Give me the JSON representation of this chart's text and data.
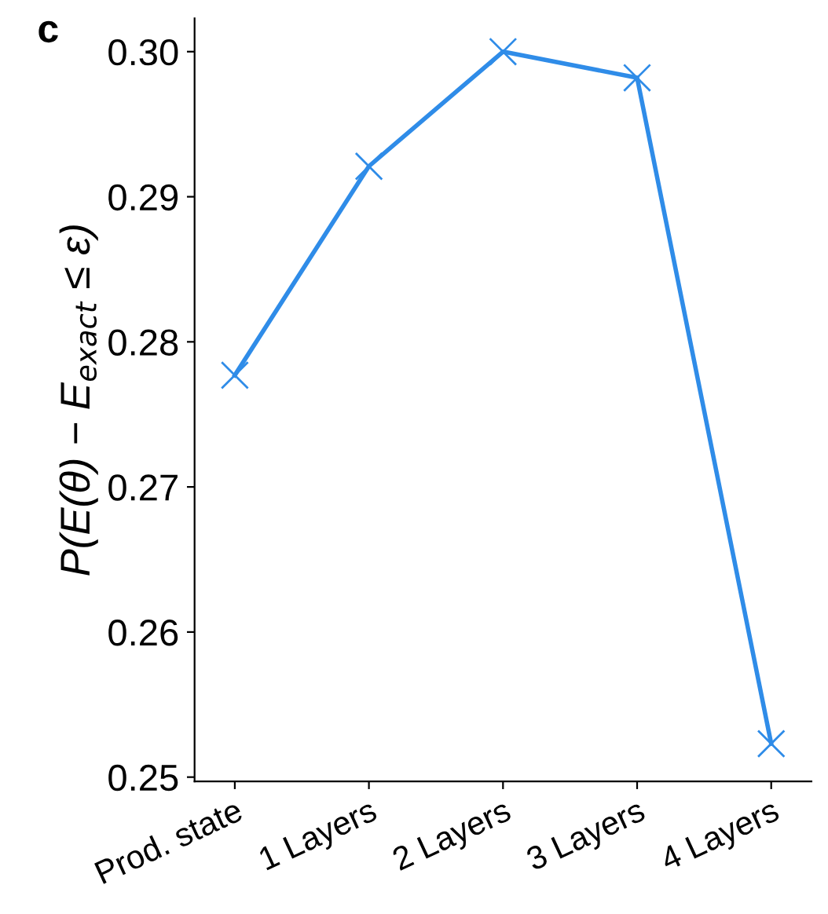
{
  "chart_data": {
    "type": "line",
    "ylabel": "P(E(θ) − E$_{exact}$ ≤ ε)",
    "annotations": [
      "c"
    ],
    "categories": [
      "Prod. state",
      "1 Layers",
      "2 Layers",
      "3 Layers",
      "4 Layers"
    ],
    "series": [
      {
        "color": "#2f8ce8",
        "values": [
          0.2777,
          0.2921,
          0.3,
          0.2982,
          0.2523
        ]
      }
    ],
    "ylim": [
      0.2497,
      0.3023
    ],
    "yticks": [
      {
        "value": 0.25,
        "label": "0.25"
      },
      {
        "value": 0.26,
        "label": "0.26"
      },
      {
        "value": 0.27,
        "label": "0.27"
      },
      {
        "value": 0.28,
        "label": "0.28"
      },
      {
        "value": 0.29,
        "label": "0.29"
      },
      {
        "value": 0.3,
        "label": "0.30"
      }
    ],
    "marker": "cross",
    "line_style": "solid",
    "grid": false,
    "legend": false
  }
}
